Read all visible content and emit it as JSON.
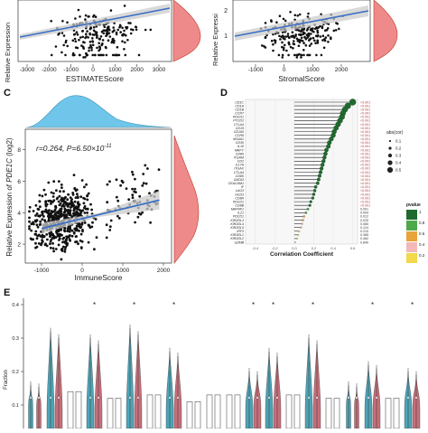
{
  "panel_labels": {
    "c": "C",
    "d": "D",
    "e": "E"
  },
  "chart_data": [
    {
      "id": "A",
      "type": "scatter",
      "xlabel": "ESTIMATEScore",
      "ylabel": "Relative Expression",
      "xticks": [
        "-3000",
        "-2000",
        "-1000",
        "0",
        "1000",
        "2000",
        "3000"
      ],
      "xlim": [
        -3300,
        3400
      ],
      "point_count": 220,
      "trend": "positive linear fit with confidence band",
      "marginal": "right density (red)"
    },
    {
      "id": "B",
      "type": "scatter",
      "xlabel": "StromalScore",
      "ylabel": "Relative Expressi",
      "xticks": [
        "-1000",
        "0",
        "1000",
        "2000"
      ],
      "yticks": [
        "2",
        "1"
      ],
      "xlim": [
        -2000,
        2300
      ],
      "point_count": 220,
      "trend": "positive linear fit with confidence band",
      "marginal": "right density (red)"
    },
    {
      "id": "C",
      "type": "scatter",
      "annotation": "r=0.264, P=6.50×10",
      "annotation_exp": "-11",
      "ylabel_prefix": "Relative Expression of ",
      "ylabel_gene": "PDE1C",
      "ylabel_suffix": " (log2)",
      "xlabel": "ImmuneScore",
      "xticks": [
        "-1000",
        "0",
        "1000",
        "2000"
      ],
      "yticks": [
        "2",
        "4",
        "6",
        "8"
      ],
      "xlim": [
        -1400,
        2200
      ],
      "ylim": [
        0.8,
        9.3
      ],
      "fit": {
        "x0": -1000,
        "y0": 3.0,
        "x1": 1900,
        "y1": 4.8
      },
      "point_count": 600,
      "marginals": {
        "top": "density (blue)",
        "right": "density (red)"
      }
    },
    {
      "id": "D",
      "type": "lollipop",
      "xlabel": "Correlation Coefficient",
      "xticks": [
        "-0.4",
        "-0.2",
        "0.0",
        "0.2",
        "0.4",
        "0.6"
      ],
      "xlim": [
        -0.5,
        0.65
      ],
      "genes": [
        "CD1C",
        "CD1A",
        "CD1B",
        "CCR7",
        "PDCD1",
        "PTCD2",
        "CTLA4",
        "CD19",
        "CD160",
        "CCR6",
        "MS4A1",
        "CD30",
        "IL10",
        "MRFY",
        "CD86",
        "ITGAM",
        "CD2",
        "IL17A",
        "ITGAX",
        "CTLA4",
        "CD80",
        "GATA3",
        "CEACAM1",
        "IF",
        "LAG3",
        "HCD3",
        "CD8A",
        "PDCD1",
        "CD8B",
        "MAP4K1",
        "IL21",
        "PDCD1",
        "KIR2DL3",
        "KIR2DL4",
        "KIR2DL5",
        "IRF3",
        "KIR3DL1",
        "KIR2DL2",
        "GZMB"
      ],
      "correlations": [
        0.6,
        0.55,
        0.52,
        0.5,
        0.49,
        0.47,
        0.45,
        0.43,
        0.41,
        0.4,
        0.38,
        0.36,
        0.35,
        0.33,
        0.32,
        0.31,
        0.3,
        0.29,
        0.28,
        0.27,
        0.26,
        0.25,
        0.24,
        0.22,
        0.21,
        0.2,
        0.19,
        0.17,
        0.16,
        0.14,
        0.12,
        0.1,
        0.09,
        0.08,
        0.07,
        0.05,
        0.04,
        0.03,
        0.01
      ],
      "pvalues": [
        "<0.001",
        "<0.001",
        "<0.001",
        "<0.001",
        "<0.001",
        "<0.001",
        "<0.001",
        "<0.001",
        "<0.001",
        "<0.001",
        "<0.001",
        "<0.001",
        "<0.001",
        "<0.001",
        "<0.001",
        "<0.001",
        "<0.001",
        "<0.001",
        "<0.001",
        "<0.001",
        "<0.001",
        "<0.001",
        "<0.001",
        "<0.001",
        "<0.001",
        "<0.001",
        "<0.001",
        "<0.001",
        "<0.001",
        "0.001",
        "0.004",
        "0.012",
        "0.025",
        "0.080",
        "0.124",
        "0.210",
        "0.385",
        "0.462",
        "0.840"
      ],
      "legend_size": {
        "title": "abs(cor)",
        "levels": [
          "0.1",
          "0.2",
          "0.3",
          "0.4",
          "0.5"
        ]
      },
      "legend_pvalue": {
        "title": "pvalue",
        "levels": [
          "1",
          "0.8",
          "0.6",
          "0.4",
          "0.2"
        ],
        "colors": [
          "#1f6b2e",
          "#4ea84a",
          "#e8a33a",
          "#f3b8b8",
          "#f2d84a"
        ]
      }
    },
    {
      "id": "E",
      "type": "violin",
      "ylabel": "Fraction",
      "yticks": [
        "0.4",
        "0.3",
        "0.2",
        "0.1"
      ],
      "ylim": [
        0,
        0.42
      ],
      "groups": 20,
      "series_colors": [
        "#3b9bb0",
        "#c0606d"
      ],
      "significance": [
        false,
        false,
        false,
        true,
        false,
        true,
        false,
        true,
        false,
        false,
        false,
        true,
        true,
        false,
        true,
        false,
        false,
        true,
        false,
        true
      ],
      "sig_marker": "*"
    }
  ]
}
